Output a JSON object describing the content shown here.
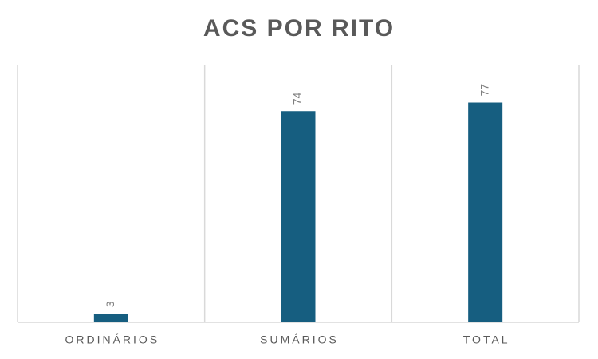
{
  "chart_data": {
    "type": "bar",
    "title": "ACS POR RITO",
    "categories": [
      "ORDINÁRIOS",
      "SUMÁRIOS",
      "TOTAL"
    ],
    "values": [
      3,
      74,
      77
    ],
    "color": "#165e80",
    "ylim": [
      0,
      90
    ]
  }
}
